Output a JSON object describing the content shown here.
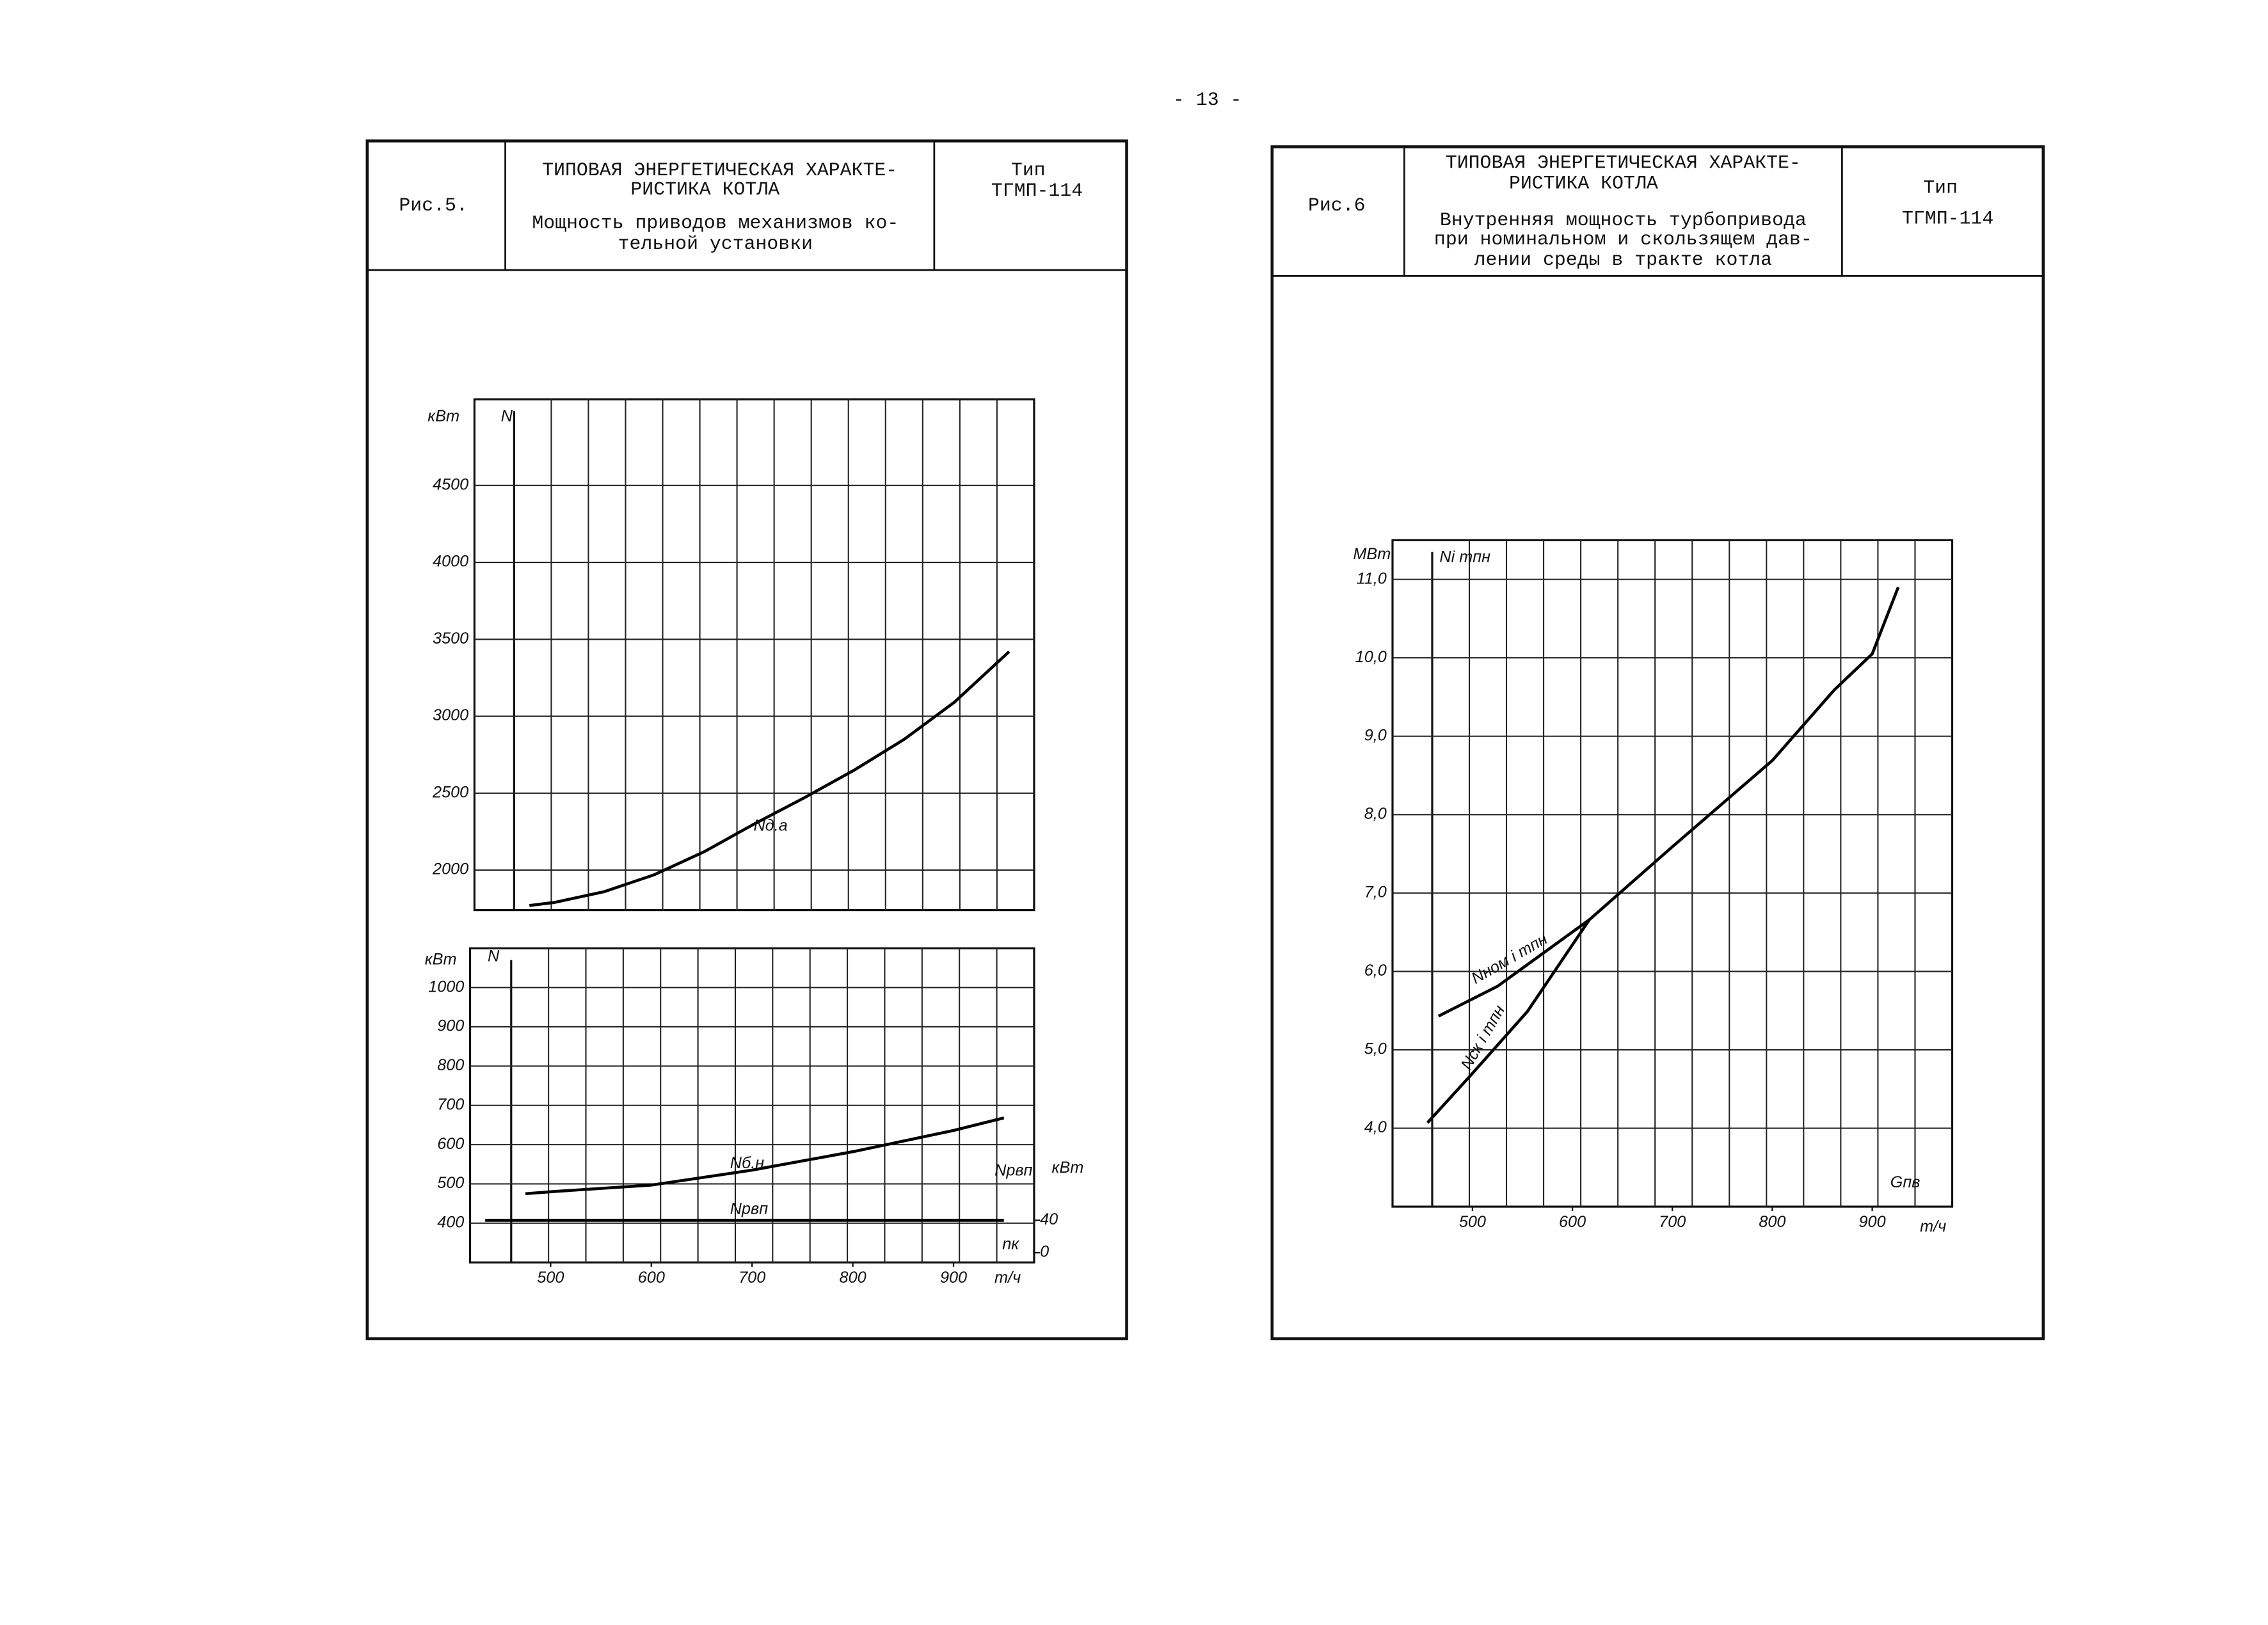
{
  "page_number": "- 13 -",
  "panels": [
    {
      "fig": "Рис.5.",
      "title_lines": [
        "ТИПОВАЯ ЭНЕРГЕТИЧЕСКАЯ ХАРАКТЕ-",
        "РИСТИКА КОТЛА"
      ],
      "subtitle_lines": [
        "Мощность приводов механизмов ко-",
        "тельной установки"
      ],
      "type_label": "Тип",
      "type_value": "ТГМП-114"
    },
    {
      "fig": "Рис.6",
      "title_lines": [
        "ТИПОВАЯ ЭНЕРГЕТИЧЕСКАЯ ХАРАКТЕ-",
        "РИСТИКА КОТЛА"
      ],
      "subtitle_lines": [
        "Внутренняя мощность турбопривода",
        "при номинальном и скользящем дав-",
        "лении среды в тракте котла"
      ],
      "type_label": "Тип",
      "type_value": "ТГМП-114"
    }
  ],
  "chart_data": [
    {
      "type": "line",
      "y_unit": "кВт",
      "y_label": "N",
      "xlim": [
        420,
        980
      ],
      "ylim": [
        1740,
        5060
      ],
      "yticks": [
        2000,
        2500,
        3000,
        3500,
        4000,
        4500
      ],
      "grid": true,
      "series": [
        {
          "name": "Nд.а",
          "color": "#000000",
          "x": [
            475,
            500,
            550,
            600,
            650,
            700,
            750,
            800,
            850,
            900,
            955
          ],
          "values": [
            1770,
            1790,
            1860,
            1970,
            2120,
            2300,
            2470,
            2650,
            2850,
            3090,
            3420
          ]
        }
      ]
    },
    {
      "type": "line",
      "y_unit": "кВт",
      "y_label": "N",
      "y2_unit": "кВт",
      "x_unit": "т/ч",
      "annotations": [
        "nк"
      ],
      "xlim": [
        420,
        980
      ],
      "ylim": [
        300,
        1100
      ],
      "y2lim": [
        -12,
        376
      ],
      "xticks": [
        500,
        600,
        700,
        800,
        900
      ],
      "yticks": [
        400,
        500,
        600,
        700,
        800,
        900,
        1000
      ],
      "y2ticks": [
        0,
        40
      ],
      "grid": true,
      "series": [
        {
          "name": "Nб.н",
          "color": "#000000",
          "x": [
            475,
            500,
            600,
            700,
            800,
            900,
            950
          ],
          "values": [
            475,
            480,
            497,
            535,
            582,
            636,
            668
          ]
        },
        {
          "name": "Nрвп",
          "color": "#000000",
          "axis": "y2",
          "x": [
            435,
            950
          ],
          "values": [
            40,
            40
          ]
        }
      ]
    },
    {
      "type": "line",
      "y_unit": "МВт",
      "y_label": "Ni тпн",
      "x_label": "Gпв",
      "x_unit": "т/ч",
      "xlim": [
        420,
        980
      ],
      "ylim": [
        3.0,
        11.5
      ],
      "xticks": [
        500,
        600,
        700,
        800,
        900
      ],
      "yticks": [
        {
          "value": 4,
          "label": "4,0"
        },
        {
          "value": 5,
          "label": "5,0"
        },
        {
          "value": 6,
          "label": "6,0"
        },
        {
          "value": 7,
          "label": "7,0"
        },
        {
          "value": 8,
          "label": "8,0"
        },
        {
          "value": 9,
          "label": "9,0"
        },
        {
          "value": 10,
          "label": "10,0"
        },
        {
          "value": 11,
          "label": "11,0"
        }
      ],
      "grid": true,
      "series": [
        {
          "name": "Nном i тпн",
          "color": "#000000",
          "x": [
            466,
            525,
            617
          ],
          "values": [
            5.43,
            5.81,
            6.66
          ]
        },
        {
          "name": "Nск i тпн",
          "color": "#000000",
          "x": [
            455,
            500,
            555,
            617,
            700,
            800,
            862,
            900,
            926
          ],
          "values": [
            4.07,
            4.7,
            5.49,
            6.66,
            7.59,
            8.69,
            9.59,
            10.05,
            10.9
          ]
        }
      ]
    }
  ]
}
